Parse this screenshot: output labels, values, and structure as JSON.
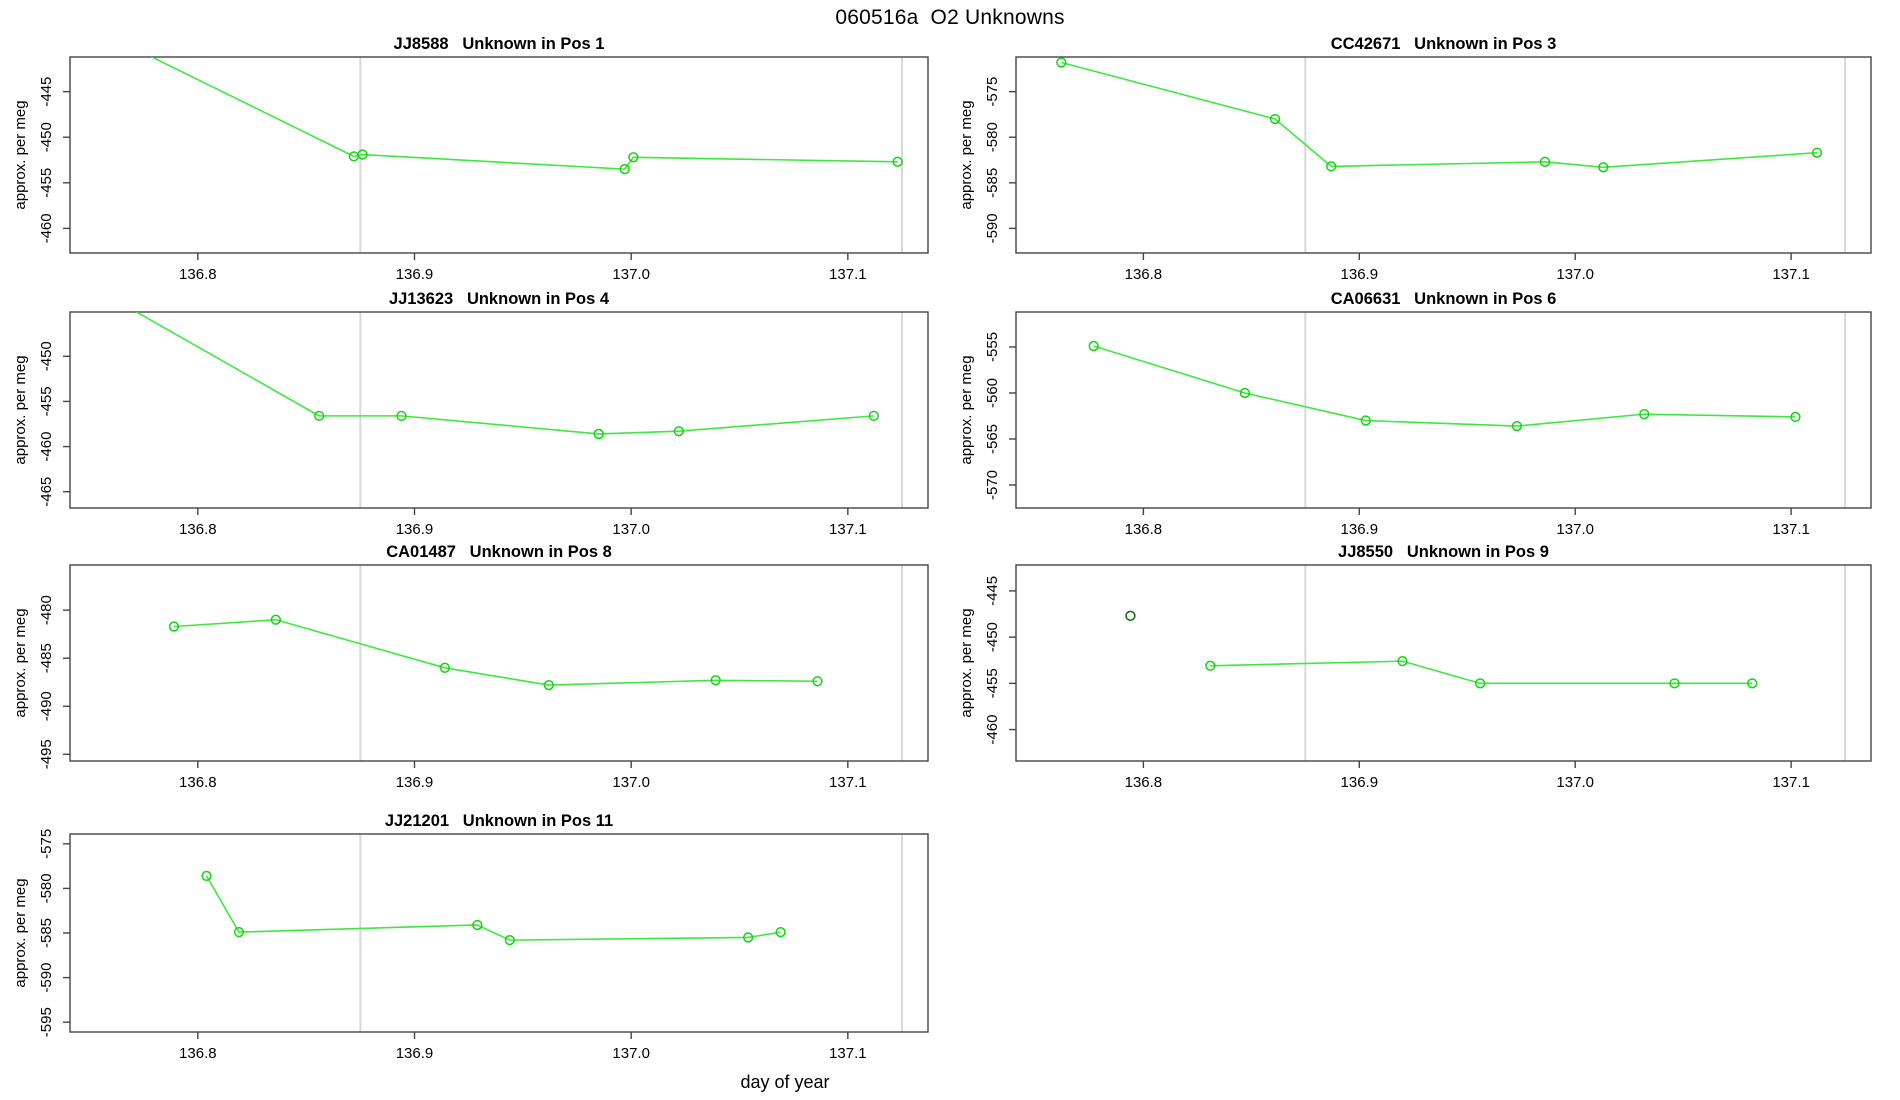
{
  "page_title": "060516a  O2 Unknowns",
  "x_axis_label": "day of year",
  "y_axis_label": "approx. per meg",
  "colors": {
    "line_green": "#3fe83f",
    "marker_green": "#0fd60f",
    "isolated_dark_green": "#1c6b1c",
    "gridline_gray": "#d8d8d8",
    "axis_color": "#444444",
    "text_color": "#000000",
    "background": "#ffffff"
  },
  "chart_data": {
    "type": "line",
    "figure_title": "060516a  O2 Unknowns",
    "xlabel": "day of year",
    "ylabel": "approx. per meg",
    "x_ticks": [
      136.8,
      136.9,
      137.0,
      137.1
    ],
    "xlim": [
      136.741,
      137.137
    ],
    "vertical_gridlines_x": [
      136.875,
      137.125
    ],
    "grid": "vertical-only",
    "legend": "none",
    "panels": [
      {
        "id": "JJ8588",
        "title": "JJ8588   Unknown in Pos 1",
        "y_ticks": [
          -445,
          -450,
          -455,
          -460
        ],
        "ylim": [
          -462.7,
          -441.2
        ],
        "points": [
          [
            136.76,
            -439.0
          ],
          [
            136.872,
            -452.1
          ],
          [
            136.876,
            -451.9
          ],
          [
            136.997,
            -453.5
          ],
          [
            137.001,
            -452.2
          ],
          [
            137.123,
            -452.7
          ]
        ],
        "isolated_points": [],
        "note": "first point above visible range; line enters from top edge"
      },
      {
        "id": "CC42671",
        "title": "CC42671   Unknown in Pos 3",
        "y_ticks": [
          -575,
          -580,
          -585,
          -590
        ],
        "ylim": [
          -592.7,
          -571.2
        ],
        "points": [
          [
            136.762,
            -571.8
          ],
          [
            136.861,
            -578.0
          ],
          [
            136.887,
            -583.2
          ],
          [
            136.986,
            -582.7
          ],
          [
            137.013,
            -583.3
          ],
          [
            137.112,
            -581.7
          ]
        ],
        "isolated_points": []
      },
      {
        "id": "JJ13623",
        "title": "JJ13623   Unknown in Pos 4",
        "y_ticks": [
          -450,
          -455,
          -460,
          -465
        ],
        "ylim": [
          -466.8,
          -445.1
        ],
        "points": [
          [
            136.76,
            -443.5
          ],
          [
            136.856,
            -456.6
          ],
          [
            136.894,
            -456.6
          ],
          [
            136.985,
            -458.6
          ],
          [
            137.022,
            -458.3
          ],
          [
            137.112,
            -456.6
          ]
        ],
        "isolated_points": [],
        "note": "first point above visible range; line enters from top edge"
      },
      {
        "id": "CA06631",
        "title": "CA06631   Unknown in Pos 6",
        "y_ticks": [
          -555,
          -560,
          -565,
          -570
        ],
        "ylim": [
          -572.5,
          -551.2
        ],
        "points": [
          [
            136.777,
            -554.9
          ],
          [
            136.847,
            -560.0
          ],
          [
            136.903,
            -563.0
          ],
          [
            136.973,
            -563.6
          ],
          [
            137.032,
            -562.3
          ],
          [
            137.102,
            -562.6
          ]
        ],
        "isolated_points": []
      },
      {
        "id": "CA01487",
        "title": "CA01487   Unknown in Pos 8",
        "y_ticks": [
          -480,
          -485,
          -490,
          -495
        ],
        "ylim": [
          -495.7,
          -475.3
        ],
        "points": [
          [
            136.789,
            -481.7
          ],
          [
            136.836,
            -481.0
          ],
          [
            136.914,
            -486.0
          ],
          [
            136.962,
            -487.8
          ],
          [
            137.039,
            -487.3
          ],
          [
            137.086,
            -487.4
          ]
        ],
        "isolated_points": []
      },
      {
        "id": "JJ8550",
        "title": "JJ8550   Unknown in Pos 9",
        "y_ticks": [
          -445,
          -450,
          -455,
          -460
        ],
        "ylim": [
          -463.4,
          -442.2
        ],
        "points": [
          [
            136.831,
            -453.1
          ],
          [
            136.92,
            -452.6
          ],
          [
            136.956,
            -455.0
          ],
          [
            137.046,
            -455.0
          ],
          [
            137.082,
            -455.0
          ]
        ],
        "isolated_points": [
          [
            136.794,
            -447.7
          ]
        ]
      },
      {
        "id": "JJ21201",
        "title": "JJ21201   Unknown in Pos 11",
        "y_ticks": [
          -575,
          -580,
          -585,
          -590,
          -595
        ],
        "ylim": [
          -596.1,
          -573.9
        ],
        "points": [
          [
            136.804,
            -578.6
          ],
          [
            136.819,
            -584.9
          ],
          [
            136.929,
            -584.1
          ],
          [
            136.944,
            -585.8
          ],
          [
            137.054,
            -585.5
          ],
          [
            137.069,
            -584.9
          ]
        ],
        "isolated_points": []
      }
    ]
  }
}
